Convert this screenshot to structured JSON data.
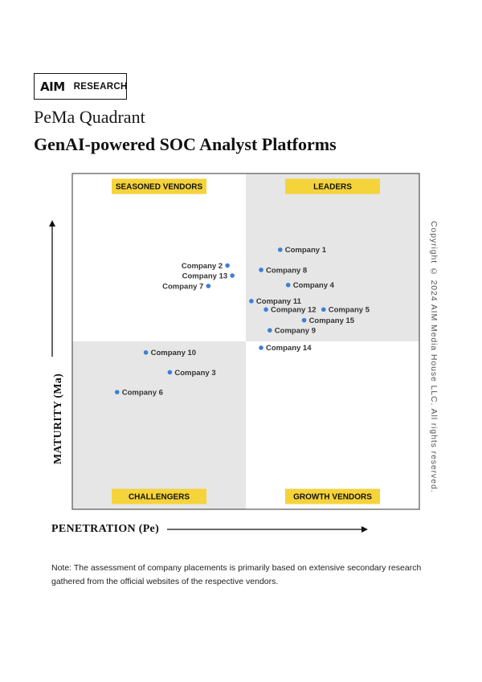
{
  "brand": {
    "logo_mark": "AIM",
    "logo_text": "RESEARCH"
  },
  "header": {
    "subtitle": "PeMa Quadrant",
    "title": "GenAI-powered SOC Analyst Platforms"
  },
  "colors": {
    "quadrant_shade": "#e6e6e6",
    "label_bg": "#f5d33b",
    "point": "#3d7fd6",
    "border": "#555555"
  },
  "chart_data": {
    "type": "scatter",
    "title": "GenAI-powered SOC Analyst Platforms",
    "xlabel": "PENETRATION (Pe)",
    "ylabel": "MATURITY (Ma)",
    "xlim": [
      0,
      100
    ],
    "ylim": [
      0,
      100
    ],
    "quadrants": {
      "top_left": "SEASONED VENDORS",
      "top_right": "LEADERS",
      "bottom_left": "CHALLENGERS",
      "bottom_right": "GROWTH VENDORS"
    },
    "points": [
      {
        "label": "Company 1",
        "x": 59.9,
        "y": 77.3
      },
      {
        "label": "Company 2",
        "x": 44.7,
        "y": 72.6
      },
      {
        "label": "Company 13",
        "x": 46.1,
        "y": 69.6
      },
      {
        "label": "Company 8",
        "x": 54.4,
        "y": 71.3
      },
      {
        "label": "Company 4",
        "x": 62.2,
        "y": 66.8
      },
      {
        "label": "Company 7",
        "x": 39.2,
        "y": 66.5
      },
      {
        "label": "Company 11",
        "x": 51.6,
        "y": 62.0
      },
      {
        "label": "Company 12",
        "x": 55.8,
        "y": 59.5
      },
      {
        "label": "Company 5",
        "x": 72.4,
        "y": 59.5
      },
      {
        "label": "Company 15",
        "x": 66.8,
        "y": 56.3
      },
      {
        "label": "Company 9",
        "x": 56.9,
        "y": 53.3
      },
      {
        "label": "Company 14",
        "x": 54.4,
        "y": 48.1
      },
      {
        "label": "Company 10",
        "x": 21.2,
        "y": 46.7
      },
      {
        "label": "Company 3",
        "x": 28.1,
        "y": 40.8
      },
      {
        "label": "Company 6",
        "x": 12.9,
        "y": 34.9
      }
    ]
  },
  "copyright": "Copyright © 2024 AIM Media House LLC. All rights reserved.",
  "note": "Note: The assessment of company placements is primarily based on extensive secondary research gathered from the official websites of the respective vendors."
}
